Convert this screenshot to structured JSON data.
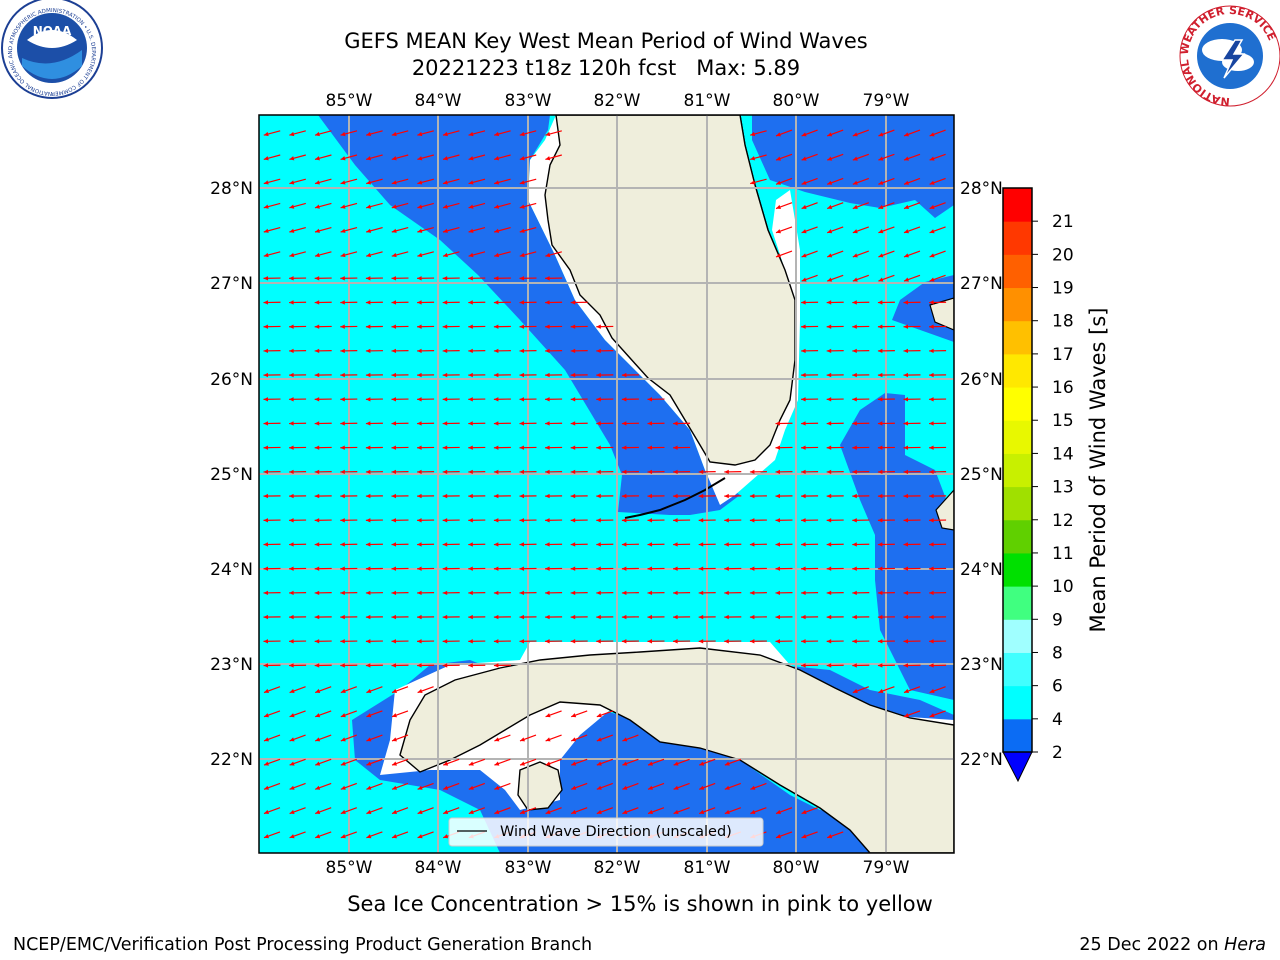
{
  "title": {
    "line1": "GEFS MEAN Key West Mean Period of Wind Waves",
    "line2": "20221223 t18z 120h fcst   Max: 5.89"
  },
  "lon_labels": [
    "85°W",
    "84°W",
    "83°W",
    "82°W",
    "81°W",
    "80°W",
    "79°W"
  ],
  "lat_labels": [
    "28°N",
    "27°N",
    "26°N",
    "25°N",
    "24°N",
    "23°N",
    "22°N"
  ],
  "legend": {
    "label": "Wind Wave Direction (unscaled)"
  },
  "colorbar": {
    "label": "Mean Period of Wind Waves [s]",
    "ticks": [
      "2",
      "4",
      "6",
      "8",
      "9",
      "10",
      "11",
      "12",
      "13",
      "14",
      "15",
      "16",
      "17",
      "18",
      "19",
      "20",
      "21"
    ],
    "colors": [
      "#0b6cf4",
      "#00ffff",
      "#40ffff",
      "#a0ffff",
      "#40ff80",
      "#00e000",
      "#60d000",
      "#a0e000",
      "#c8f000",
      "#e8f800",
      "#ffff00",
      "#ffe800",
      "#ffc000",
      "#ff9000",
      "#ff6000",
      "#ff3800",
      "#ff0000"
    ],
    "extend_color": "#0000ff"
  },
  "map_colors": {
    "ocean_short": "#00ffff",
    "ocean_mid": "#1e6ff0",
    "ocean_deep": "#0000ee",
    "land": "#efeedc",
    "arrow": "#ff0000"
  },
  "subtitle": "Sea Ice Concentration > 15% is shown in pink to yellow",
  "footer": {
    "left": "NCEP/EMC/Verification Post Processing Product Generation Branch",
    "date": "25 Dec 2022 on ",
    "host": "Hera"
  },
  "logos": {
    "noaa_text": "NOAA",
    "noaa_ring": "NATIONAL OCEANIC AND ATMOSPHERIC ADMINISTRATION • U.S. DEPARTMENT OF COMMERCE",
    "nws_ring": "NATIONAL WEATHER SERVICE"
  }
}
